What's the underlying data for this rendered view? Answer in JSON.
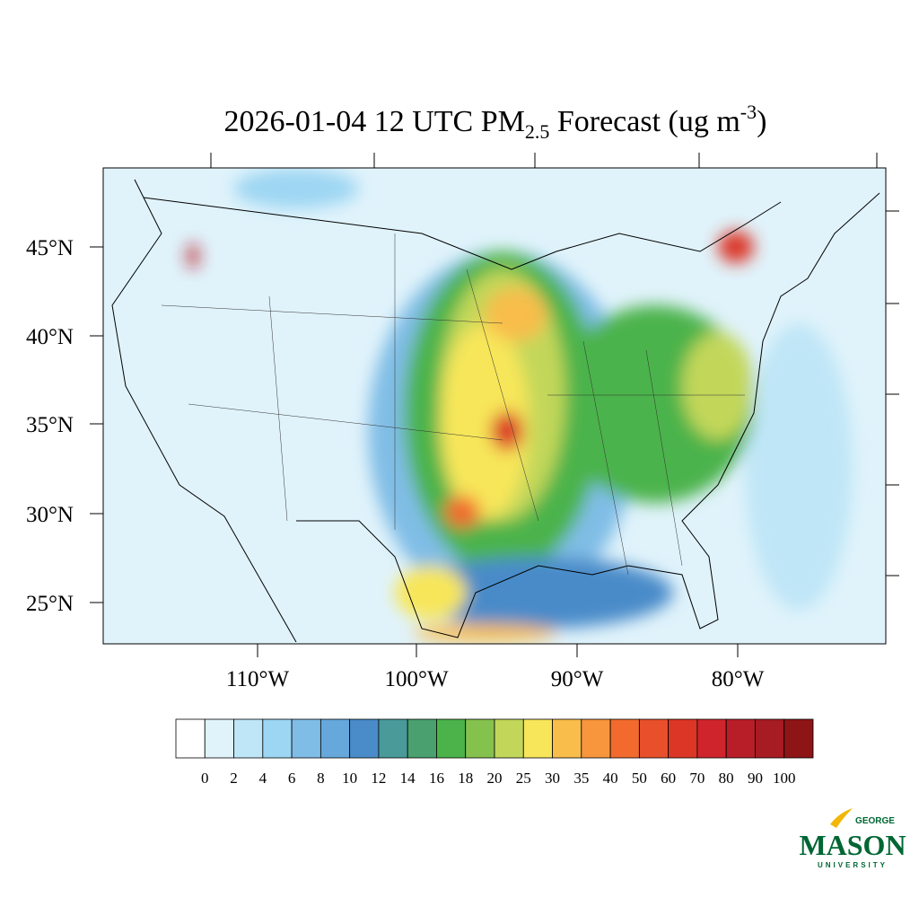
{
  "title": {
    "main": "2026-01-04 12 UTC PM",
    "sub": "2.5",
    "rest": " Forecast (ug m",
    "sup": "-3",
    "end": ")"
  },
  "latitude_labels": [
    "45°N",
    "40°N",
    "35°N",
    "30°N",
    "25°N"
  ],
  "longitude_labels": [
    "110°W",
    "100°W",
    "90°W",
    "80°W"
  ],
  "colorbar": {
    "levels": [
      0,
      2,
      4,
      6,
      8,
      10,
      12,
      14,
      16,
      18,
      20,
      25,
      30,
      35,
      40,
      50,
      60,
      70,
      80,
      90,
      100
    ],
    "colors": [
      "#ffffff",
      "#e0f3fb",
      "#bfe6f7",
      "#9dd6f3",
      "#80bde6",
      "#66a8db",
      "#4a8bc9",
      "#4a9a9a",
      "#4aa06f",
      "#4cb34b",
      "#84c24d",
      "#c2d75a",
      "#f7e65a",
      "#f8bd4b",
      "#f7963d",
      "#f26a2e",
      "#e8502b",
      "#dc3626",
      "#d0242c",
      "#b81e27",
      "#a61c22",
      "#8e1516"
    ]
  },
  "logo": {
    "top": "GEORGE",
    "main": "MASON",
    "bottom": "UNIVERSITY"
  }
}
